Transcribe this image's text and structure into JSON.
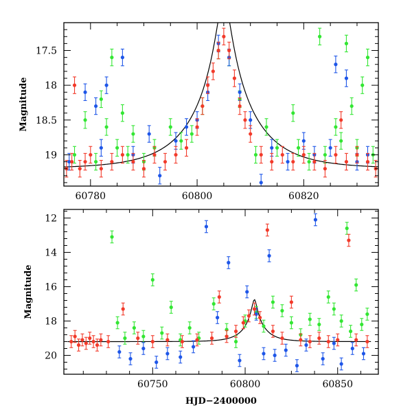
{
  "colors": {
    "green": "#33e633",
    "blue": "#1e56e8",
    "red": "#f23a2a",
    "model_curve": "#000000",
    "frame": "#000000"
  },
  "chart_data": [
    {
      "type": "scatter",
      "panel": "top",
      "ylabel": "Magnitude",
      "xlabel": "",
      "xlim": [
        60775,
        60834
      ],
      "ylim": [
        19.45,
        17.1
      ],
      "y_inverted": true,
      "xticks": [
        60780,
        60800,
        60820
      ],
      "xtick_labels": [
        "60780",
        "60800",
        "60820"
      ],
      "yticks": [
        17.5,
        18,
        18.5,
        19
      ],
      "ytick_labels": [
        "17.5",
        "18",
        "18.5",
        "19"
      ],
      "grid": false,
      "legend": "none",
      "model_curve": {
        "type": "paczynski",
        "t0": 60805,
        "tE": 11,
        "u0": 0.105,
        "baseline": 19.2,
        "x_range": [
          60775,
          60834
        ]
      },
      "series": [
        {
          "color_key": "green",
          "points": [
            [
              60777,
              19.0
            ],
            [
              60779,
              18.5
            ],
            [
              60781,
              19.1
            ],
            [
              60782,
              18.2
            ],
            [
              60783,
              18.6
            ],
            [
              60784,
              17.6
            ],
            [
              60785,
              18.9
            ],
            [
              60786,
              18.4
            ],
            [
              60787,
              19.0
            ],
            [
              60788,
              18.7
            ],
            [
              60790,
              19.1
            ],
            [
              60792,
              18.9
            ],
            [
              60795,
              18.6
            ],
            [
              60797,
              18.8
            ],
            [
              60799,
              18.7
            ],
            [
              60801,
              18.3
            ],
            [
              60804,
              17.5
            ],
            [
              60806,
              17.6
            ],
            [
              60808,
              18.2
            ],
            [
              60811,
              19.0
            ],
            [
              60813,
              18.6
            ],
            [
              60815,
              18.9
            ],
            [
              60818,
              18.4
            ],
            [
              60819,
              18.9
            ],
            [
              60821,
              19.1
            ],
            [
              60823,
              17.3
            ],
            [
              60824,
              19.0
            ],
            [
              60826,
              18.6
            ],
            [
              60827,
              18.8
            ],
            [
              60828,
              17.4
            ],
            [
              60829,
              18.3
            ],
            [
              60830,
              18.9
            ],
            [
              60831,
              18.0
            ],
            [
              60832,
              17.6
            ],
            [
              60833,
              19.0
            ]
          ]
        },
        {
          "color_key": "blue",
          "points": [
            [
              60776,
              19.1
            ],
            [
              60779,
              18.1
            ],
            [
              60781,
              18.3
            ],
            [
              60782,
              18.9
            ],
            [
              60783,
              18.0
            ],
            [
              60786,
              17.6
            ],
            [
              60788,
              19.0
            ],
            [
              60791,
              18.7
            ],
            [
              60793,
              19.3
            ],
            [
              60796,
              18.8
            ],
            [
              60798,
              18.6
            ],
            [
              60800,
              18.5
            ],
            [
              60802,
              18.1
            ],
            [
              60804,
              17.4
            ],
            [
              60806,
              17.6
            ],
            [
              60808,
              18.1
            ],
            [
              60810,
              18.5
            ],
            [
              60812,
              19.4
            ],
            [
              60814,
              18.9
            ],
            [
              60817,
              19.1
            ],
            [
              60820,
              18.8
            ],
            [
              60822,
              19.0
            ],
            [
              60825,
              18.9
            ],
            [
              60826,
              17.7
            ],
            [
              60828,
              17.9
            ],
            [
              60830,
              19.1
            ],
            [
              60832,
              19.0
            ]
          ]
        },
        {
          "color_key": "red",
          "points": [
            [
              60775.5,
              19.2
            ],
            [
              60776.5,
              19.1
            ],
            [
              60777,
              18.0
            ],
            [
              60778,
              19.2
            ],
            [
              60779,
              19.1
            ],
            [
              60780,
              19.0
            ],
            [
              60782,
              19.2
            ],
            [
              60784,
              19.1
            ],
            [
              60786,
              19.0
            ],
            [
              60788,
              19.1
            ],
            [
              60790,
              19.2
            ],
            [
              60792,
              19.0
            ],
            [
              60794,
              19.1
            ],
            [
              60796,
              19.0
            ],
            [
              60798,
              18.9
            ],
            [
              60800,
              18.6
            ],
            [
              60801,
              18.3
            ],
            [
              60802,
              18.0
            ],
            [
              60803,
              17.8
            ],
            [
              60804,
              17.5
            ],
            [
              60805,
              17.3
            ],
            [
              60806,
              17.5
            ],
            [
              60807,
              17.9
            ],
            [
              60808,
              18.3
            ],
            [
              60809,
              18.5
            ],
            [
              60810,
              18.7
            ],
            [
              60812,
              19.0
            ],
            [
              60814,
              19.1
            ],
            [
              60816,
              19.0
            ],
            [
              60818,
              19.1
            ],
            [
              60820,
              19.0
            ],
            [
              60822,
              19.1
            ],
            [
              60824,
              19.2
            ],
            [
              60826,
              19.0
            ],
            [
              60827,
              18.5
            ],
            [
              60828,
              19.1
            ],
            [
              60830,
              19.0
            ],
            [
              60832,
              19.1
            ],
            [
              60833.5,
              19.2
            ]
          ]
        }
      ]
    },
    {
      "type": "scatter",
      "panel": "bottom",
      "ylabel": "Magnitude",
      "xlabel": "HJD−2400000",
      "xlim": [
        60702,
        60872
      ],
      "ylim": [
        21.1,
        11.5
      ],
      "y_inverted": true,
      "xticks": [
        60750,
        60800,
        60850
      ],
      "xtick_labels": [
        "60750",
        "60800",
        "60850"
      ],
      "yticks": [
        12,
        14,
        16,
        18,
        20
      ],
      "ytick_labels": [
        "12",
        "14",
        "16",
        "18",
        "20"
      ],
      "grid": false,
      "legend": "none",
      "model_curve": {
        "type": "paczynski",
        "t0": 60805,
        "tE": 11,
        "u0": 0.105,
        "baseline": 19.2,
        "x_range": [
          60704,
          60868
        ]
      },
      "series": [
        {
          "color_key": "green",
          "points": [
            [
              60728,
              13.1
            ],
            [
              60731,
              18.1
            ],
            [
              60735,
              19.0
            ],
            [
              60740,
              18.4
            ],
            [
              60745,
              18.9
            ],
            [
              60750,
              15.6
            ],
            [
              60755,
              18.7
            ],
            [
              60760,
              17.2
            ],
            [
              60765,
              19.1
            ],
            [
              60770,
              18.4
            ],
            [
              60775,
              19.0
            ],
            [
              60783,
              17.0
            ],
            [
              60790,
              18.5
            ],
            [
              60795,
              19.2
            ],
            [
              60800,
              18.0
            ],
            [
              60806,
              17.5
            ],
            [
              60810,
              18.3
            ],
            [
              60815,
              16.9
            ],
            [
              60820,
              17.4
            ],
            [
              60825,
              18.1
            ],
            [
              60830,
              18.8
            ],
            [
              60835,
              17.9
            ],
            [
              60840,
              18.2
            ],
            [
              60845,
              16.6
            ],
            [
              60848,
              17.3
            ],
            [
              60852,
              18.0
            ],
            [
              60855,
              12.6
            ],
            [
              60857,
              18.6
            ],
            [
              60860,
              15.9
            ],
            [
              60863,
              18.2
            ],
            [
              60866,
              17.6
            ]
          ]
        },
        {
          "color_key": "blue",
          "points": [
            [
              60732,
              19.8
            ],
            [
              60738,
              20.2
            ],
            [
              60745,
              19.6
            ],
            [
              60752,
              20.4
            ],
            [
              60758,
              19.9
            ],
            [
              60765,
              20.1
            ],
            [
              60772,
              19.5
            ],
            [
              60779,
              12.5
            ],
            [
              60785,
              17.8
            ],
            [
              60791,
              14.6
            ],
            [
              60797,
              20.3
            ],
            [
              60801,
              16.3
            ],
            [
              60806,
              17.6
            ],
            [
              60810,
              19.9
            ],
            [
              60813,
              14.2
            ],
            [
              60816,
              20.0
            ],
            [
              60822,
              19.7
            ],
            [
              60828,
              20.6
            ],
            [
              60833,
              19.4
            ],
            [
              60838,
              12.1
            ],
            [
              60842,
              20.2
            ],
            [
              60848,
              19.3
            ],
            [
              60852,
              20.5
            ],
            [
              60858,
              19.6
            ],
            [
              60864,
              19.9
            ]
          ]
        },
        {
          "color_key": "red",
          "points": [
            [
              60706,
              19.2
            ],
            [
              60708,
              18.9
            ],
            [
              60710,
              19.4
            ],
            [
              60712,
              19.1
            ],
            [
              60714,
              19.3
            ],
            [
              60716,
              19.0
            ],
            [
              60718,
              19.2
            ],
            [
              60720,
              19.4
            ],
            [
              60722,
              19.1
            ],
            [
              60726,
              19.2
            ],
            [
              60734,
              17.3
            ],
            [
              60742,
              19.0
            ],
            [
              60750,
              19.2
            ],
            [
              60758,
              19.1
            ],
            [
              60766,
              19.2
            ],
            [
              60774,
              19.1
            ],
            [
              60782,
              19.0
            ],
            [
              60786,
              16.6
            ],
            [
              60790,
              18.9
            ],
            [
              60795,
              18.6
            ],
            [
              60799,
              18.1
            ],
            [
              60802,
              17.7
            ],
            [
              60805,
              17.3
            ],
            [
              60808,
              17.8
            ],
            [
              60812,
              12.7
            ],
            [
              60815,
              18.6
            ],
            [
              60820,
              19.0
            ],
            [
              60825,
              16.9
            ],
            [
              60830,
              19.1
            ],
            [
              60835,
              19.2
            ],
            [
              60840,
              19.0
            ],
            [
              60845,
              19.2
            ],
            [
              60850,
              19.1
            ],
            [
              60856,
              13.3
            ],
            [
              60860,
              19.1
            ],
            [
              60866,
              19.2
            ]
          ]
        }
      ]
    }
  ]
}
